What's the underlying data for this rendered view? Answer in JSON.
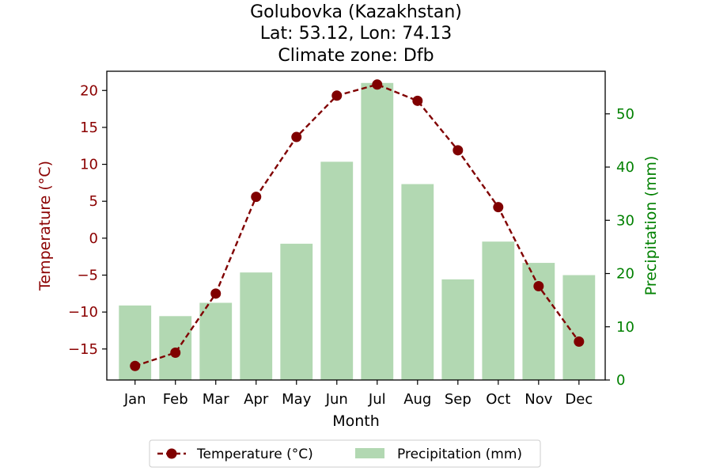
{
  "chart_data": {
    "type": "bar+line",
    "title": [
      "Golubovka (Kazakhstan)",
      "Lat: 53.12, Lon: 74.13",
      "Climate zone: Dfb"
    ],
    "xlabel": "Month",
    "categories": [
      "Jan",
      "Feb",
      "Mar",
      "Apr",
      "May",
      "Jun",
      "Jul",
      "Aug",
      "Sep",
      "Oct",
      "Nov",
      "Dec"
    ],
    "y_left": {
      "label": "Temperature (°C)",
      "ylim": [
        -19.2,
        22.6
      ],
      "ticks": [
        -15,
        -10,
        -5,
        0,
        5,
        10,
        15,
        20
      ],
      "tick_labels": [
        "−15",
        "−10",
        "−5",
        "0",
        "5",
        "10",
        "15",
        "20"
      ],
      "color": "#8b0000"
    },
    "y_right": {
      "label": "Precipitation (mm)",
      "ylim": [
        0,
        58
      ],
      "ticks": [
        0,
        10,
        20,
        30,
        40,
        50
      ],
      "tick_labels": [
        "0",
        "10",
        "20",
        "30",
        "40",
        "50"
      ],
      "color": "#008000"
    },
    "series": [
      {
        "name": "Temperature (°C)",
        "kind": "line",
        "axis": "left",
        "style": "dashed, circle markers",
        "color": "#800000",
        "values": [
          -17.3,
          -15.5,
          -7.5,
          5.6,
          13.7,
          19.3,
          20.8,
          18.6,
          11.9,
          4.2,
          -6.5,
          -14.0
        ]
      },
      {
        "name": "Precipitation (mm)",
        "kind": "bar",
        "axis": "right",
        "color": "#b2d8b2",
        "values": [
          14.0,
          12.0,
          14.5,
          20.2,
          25.6,
          41.0,
          55.8,
          36.8,
          18.9,
          26.0,
          22.0,
          19.7
        ]
      }
    ],
    "legend": {
      "placement": "bottom-center",
      "entries": [
        "Temperature (°C)",
        "Precipitation (mm)"
      ]
    },
    "grid": false
  }
}
